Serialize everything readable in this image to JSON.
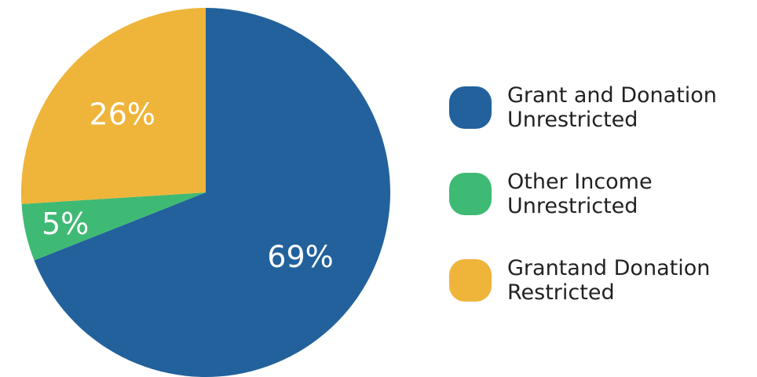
{
  "chart_data": {
    "type": "pie",
    "slices": [
      {
        "line1": "Grant and Donation",
        "line2": "Unrestricted",
        "value": 69,
        "label": "69%",
        "color": "#22619c"
      },
      {
        "line1": "Other Income",
        "line2": "Unrestricted",
        "value": 5,
        "label": "5%",
        "color": "#3fba74"
      },
      {
        "line1": "Grantand Donation",
        "line2": "Restricted",
        "value": 26,
        "label": "26%",
        "color": "#efb43a"
      }
    ],
    "legend_position": "right"
  }
}
